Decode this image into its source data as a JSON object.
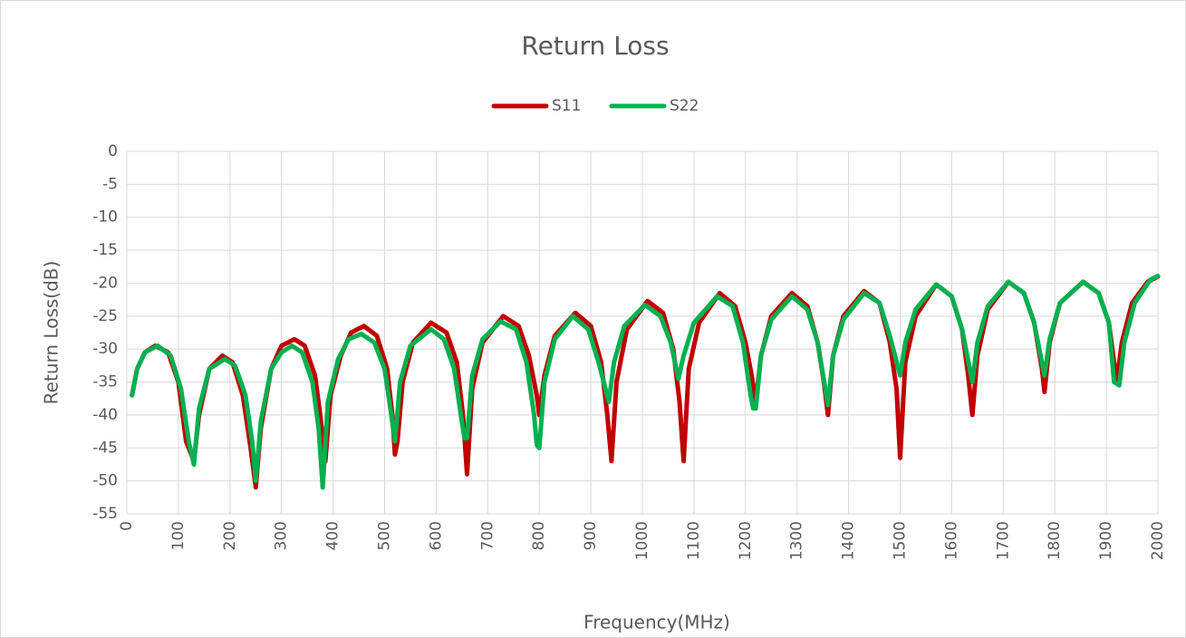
{
  "chart_data": {
    "type": "line",
    "title": "Return Loss",
    "xlabel": "Frequency(MHz)",
    "ylabel": "Return Loss(dB)",
    "xlim": [
      0,
      2000
    ],
    "xticks": [
      0,
      100,
      200,
      300,
      400,
      500,
      600,
      700,
      800,
      900,
      1000,
      1100,
      1200,
      1300,
      1400,
      1500,
      1600,
      1700,
      1800,
      1900,
      2000
    ],
    "ylim": [
      -55,
      0
    ],
    "yticks": [
      0,
      -5,
      -10,
      -15,
      -20,
      -25,
      -30,
      -35,
      -40,
      -45,
      -50,
      -55
    ],
    "grid": true,
    "legend": "top",
    "series": [
      {
        "name": "S11",
        "color": "#c00000",
        "x": [
          10,
          20,
          35,
          55,
          80,
          100,
          115,
          130,
          140,
          160,
          185,
          205,
          225,
          240,
          250,
          260,
          280,
          300,
          325,
          345,
          365,
          375,
          385,
          395,
          415,
          435,
          460,
          485,
          505,
          515,
          520,
          525,
          535,
          555,
          590,
          620,
          640,
          652,
          660,
          670,
          690,
          730,
          760,
          780,
          795,
          800,
          810,
          830,
          870,
          900,
          920,
          932,
          940,
          950,
          970,
          1010,
          1040,
          1060,
          1072,
          1080,
          1090,
          1110,
          1150,
          1180,
          1200,
          1212,
          1220,
          1230,
          1250,
          1290,
          1320,
          1340,
          1352,
          1360,
          1370,
          1390,
          1430,
          1460,
          1480,
          1493,
          1500,
          1510,
          1530,
          1570,
          1600,
          1620,
          1632,
          1640,
          1650,
          1670,
          1710,
          1740,
          1760,
          1775,
          1780,
          1790,
          1810,
          1855,
          1885,
          1905,
          1915,
          1920,
          1930,
          1950,
          1980,
          2000
        ],
        "values": [
          -37,
          -33,
          -30.5,
          -29.5,
          -30.5,
          -35,
          -44,
          -47,
          -40,
          -33,
          -31,
          -32,
          -37,
          -45,
          -51,
          -42,
          -33,
          -29.5,
          -28.5,
          -29.5,
          -34,
          -40,
          -47,
          -37,
          -31,
          -27.5,
          -26.5,
          -28,
          -33,
          -40,
          -46,
          -44,
          -35,
          -29,
          -26,
          -27.5,
          -32,
          -40,
          -49,
          -36,
          -29,
          -25,
          -26.5,
          -31,
          -37,
          -40,
          -34,
          -28,
          -24.5,
          -26.5,
          -32,
          -40,
          -47,
          -35,
          -27,
          -22.7,
          -24.5,
          -30,
          -38,
          -47,
          -33,
          -26,
          -21.5,
          -23.5,
          -29,
          -34,
          -38,
          -31,
          -25,
          -21.5,
          -23.5,
          -29,
          -35,
          -40,
          -31,
          -25,
          -21.2,
          -23,
          -29,
          -36,
          -46.5,
          -32,
          -25,
          -20.2,
          -22,
          -27,
          -34,
          -40,
          -31,
          -24,
          -19.8,
          -21.5,
          -26,
          -33,
          -36.5,
          -29,
          -23,
          -19.8,
          -21.5,
          -26,
          -32,
          -35,
          -29,
          -23,
          -19.8,
          -19
        ]
      },
      {
        "name": "S22",
        "color": "#00b050",
        "x": [
          10,
          20,
          35,
          60,
          85,
          105,
          120,
          130,
          140,
          160,
          190,
          210,
          230,
          243,
          250,
          260,
          280,
          300,
          320,
          340,
          360,
          372,
          380,
          390,
          410,
          430,
          455,
          480,
          500,
          513,
          520,
          530,
          550,
          590,
          615,
          635,
          648,
          655,
          660,
          670,
          690,
          725,
          755,
          775,
          790,
          795,
          800,
          810,
          830,
          865,
          895,
          915,
          935,
          945,
          965,
          1005,
          1035,
          1055,
          1070,
          1080,
          1100,
          1145,
          1175,
          1195,
          1210,
          1215,
          1220,
          1230,
          1250,
          1290,
          1320,
          1340,
          1360,
          1370,
          1390,
          1430,
          1460,
          1480,
          1500,
          1510,
          1530,
          1570,
          1600,
          1620,
          1640,
          1650,
          1670,
          1710,
          1740,
          1760,
          1780,
          1790,
          1810,
          1855,
          1885,
          1905,
          1915,
          1925,
          1935,
          1955,
          1985,
          2000
        ],
        "values": [
          -37,
          -33,
          -30.5,
          -29.5,
          -31,
          -36,
          -44,
          -47.5,
          -39,
          -33,
          -31.5,
          -32.5,
          -37,
          -44,
          -50,
          -41,
          -33,
          -30.5,
          -29.5,
          -30.5,
          -35,
          -42,
          -51,
          -38,
          -31.5,
          -28.5,
          -27.7,
          -29,
          -33,
          -40,
          -44,
          -35,
          -29.5,
          -27,
          -28.5,
          -33,
          -40,
          -43.5,
          -43.5,
          -34,
          -28.5,
          -25.8,
          -27,
          -32,
          -40,
          -44.5,
          -45,
          -35,
          -28.5,
          -25,
          -27,
          -32,
          -38,
          -32,
          -26.5,
          -23.3,
          -25,
          -29,
          -34.5,
          -31,
          -26,
          -22,
          -23.5,
          -29,
          -37,
          -39,
          -39,
          -31,
          -25.5,
          -22,
          -24,
          -29,
          -38.5,
          -31,
          -25.5,
          -21.5,
          -23,
          -28,
          -34,
          -29,
          -24,
          -20.2,
          -22,
          -27,
          -35,
          -29,
          -23.5,
          -19.8,
          -21.5,
          -26,
          -34,
          -28.5,
          -23,
          -19.8,
          -21.5,
          -26,
          -35,
          -35.5,
          -29,
          -23,
          -19.5,
          -18.9
        ]
      }
    ]
  }
}
